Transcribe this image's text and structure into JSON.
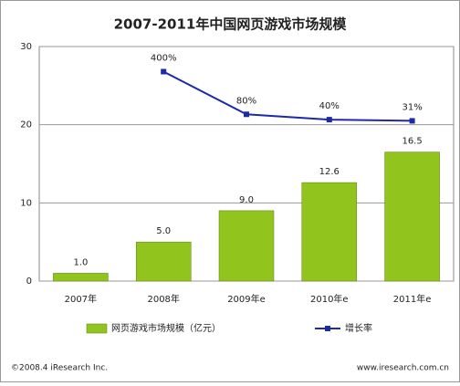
{
  "chart_data": {
    "type": "bar",
    "title": "2007-2011年中国网页游戏市场规模",
    "categories": [
      "2007年",
      "2008年",
      "2009年e",
      "2010年e",
      "2011年e"
    ],
    "series": [
      {
        "name": "网页游戏市场规模（亿元）",
        "type": "bar",
        "color": "#92c41e",
        "values": [
          1.0,
          5.0,
          9.0,
          12.6,
          16.5
        ],
        "value_labels": [
          "1.0",
          "5.0",
          "9.0",
          "12.6",
          "16.5"
        ]
      },
      {
        "name": "增长率",
        "type": "line",
        "axis": "y2",
        "color": "#1c2aa8",
        "values": [
          null,
          400,
          80,
          40,
          31
        ],
        "value_labels": [
          null,
          "400%",
          "80%",
          "40%",
          "31%"
        ]
      }
    ],
    "ylim": [
      0,
      30
    ],
    "yticks": [
      0,
      10,
      20,
      30
    ],
    "y2lim": [
      -1170,
      588
    ],
    "grid": true,
    "footer_left": "©2008.4 iResearch Inc.",
    "footer_right": "www.iresearch.com.cn"
  }
}
